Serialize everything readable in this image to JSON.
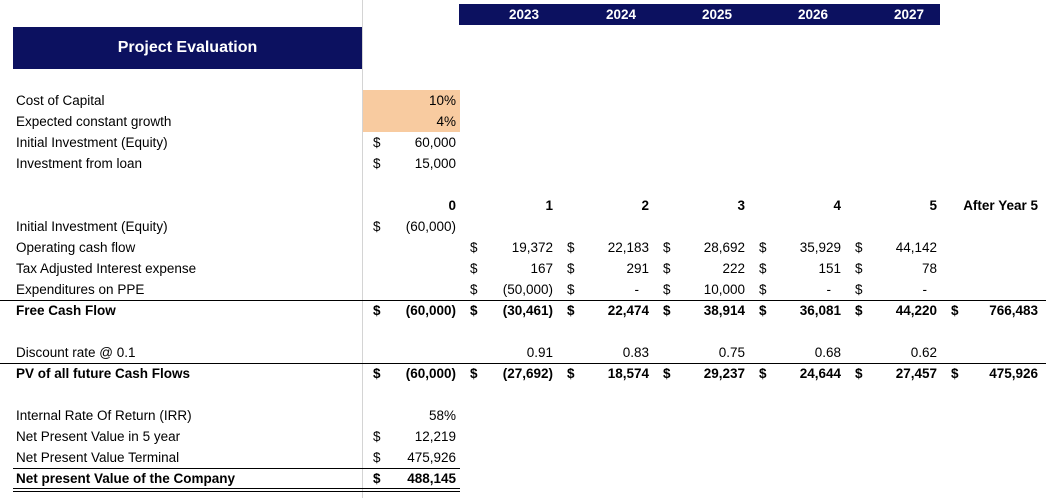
{
  "header": {
    "title": "Project Evaluation",
    "years": [
      "2023",
      "2024",
      "2025",
      "2026",
      "2027"
    ]
  },
  "colors": {
    "header_bg": "#0c1160",
    "input_fill": "#f8cba0"
  },
  "rows": [
    {
      "label": "Cost of Capital",
      "bold": false,
      "cells": [
        {
          "d": "",
          "v": "10%"
        }
      ]
    },
    {
      "label": "Expected constant growth",
      "bold": false,
      "cells": [
        {
          "d": "",
          "v": "4%"
        }
      ]
    },
    {
      "label": "Initial Investment (Equity)",
      "bold": false,
      "cells": [
        {
          "d": "$",
          "v": "60,000"
        }
      ]
    },
    {
      "label": "Investment from loan",
      "bold": false,
      "cells": [
        {
          "d": "$",
          "v": "15,000"
        }
      ]
    },
    {
      "label": "",
      "bold": true,
      "cells": [
        {
          "d": "",
          "v": "0"
        },
        {
          "d": "",
          "v": "1"
        },
        {
          "d": "",
          "v": "2"
        },
        {
          "d": "",
          "v": "3"
        },
        {
          "d": "",
          "v": "4"
        },
        {
          "d": "",
          "v": "5"
        },
        {
          "d": "",
          "v": "After Year 5"
        }
      ]
    },
    {
      "label": "Initial Investment (Equity)",
      "bold": false,
      "cells": [
        {
          "d": "$",
          "v": "(60,000)"
        }
      ]
    },
    {
      "label": "Operating cash flow",
      "bold": false,
      "cells": [
        {
          "d": "",
          "v": ""
        },
        {
          "d": "$",
          "v": "19,372"
        },
        {
          "d": "$",
          "v": "22,183"
        },
        {
          "d": "$",
          "v": "28,692"
        },
        {
          "d": "$",
          "v": "35,929"
        },
        {
          "d": "$",
          "v": "44,142"
        }
      ]
    },
    {
      "label": "Tax Adjusted Interest expense",
      "bold": false,
      "cells": [
        {
          "d": "",
          "v": ""
        },
        {
          "d": "$",
          "v": "167"
        },
        {
          "d": "$",
          "v": "291"
        },
        {
          "d": "$",
          "v": "222"
        },
        {
          "d": "$",
          "v": "151"
        },
        {
          "d": "$",
          "v": "78"
        }
      ]
    },
    {
      "label": "Expenditures on PPE",
      "bold": false,
      "cells": [
        {
          "d": "",
          "v": ""
        },
        {
          "d": "$",
          "v": "(50,000)"
        },
        {
          "d": "$",
          "v": "-"
        },
        {
          "d": "$",
          "v": "10,000"
        },
        {
          "d": "$",
          "v": "-"
        },
        {
          "d": "$",
          "v": "-"
        }
      ]
    },
    {
      "label": "Free Cash Flow",
      "bold": true,
      "cells": [
        {
          "d": "$",
          "v": "(60,000)"
        },
        {
          "d": "$",
          "v": "(30,461)"
        },
        {
          "d": "$",
          "v": "22,474"
        },
        {
          "d": "$",
          "v": "38,914"
        },
        {
          "d": "$",
          "v": "36,081"
        },
        {
          "d": "$",
          "v": "44,220"
        },
        {
          "d": "$",
          "v": "766,483"
        }
      ]
    },
    {
      "label": "Discount rate @ 0.1",
      "bold": false,
      "cells": [
        {
          "d": "",
          "v": ""
        },
        {
          "d": "",
          "v": "0.91"
        },
        {
          "d": "",
          "v": "0.83"
        },
        {
          "d": "",
          "v": "0.75"
        },
        {
          "d": "",
          "v": "0.68"
        },
        {
          "d": "",
          "v": "0.62"
        }
      ]
    },
    {
      "label": "PV of all future Cash Flows",
      "bold": true,
      "cells": [
        {
          "d": "$",
          "v": "(60,000)"
        },
        {
          "d": "$",
          "v": "(27,692)"
        },
        {
          "d": "$",
          "v": "18,574"
        },
        {
          "d": "$",
          "v": "29,237"
        },
        {
          "d": "$",
          "v": "24,644"
        },
        {
          "d": "$",
          "v": "27,457"
        },
        {
          "d": "$",
          "v": "475,926"
        }
      ]
    },
    {
      "label": "Internal Rate Of Return (IRR)",
      "bold": false,
      "cells": [
        {
          "d": "",
          "v": "58%"
        }
      ]
    },
    {
      "label": "Net Present Value in 5 year",
      "bold": false,
      "cells": [
        {
          "d": "$",
          "v": "12,219"
        }
      ]
    },
    {
      "label": "Net Present Value Terminal",
      "bold": false,
      "cells": [
        {
          "d": "$",
          "v": "475,926"
        }
      ]
    },
    {
      "label": "Net present Value of the Company",
      "bold": true,
      "cells": [
        {
          "d": "$",
          "v": "488,145"
        }
      ]
    }
  ]
}
